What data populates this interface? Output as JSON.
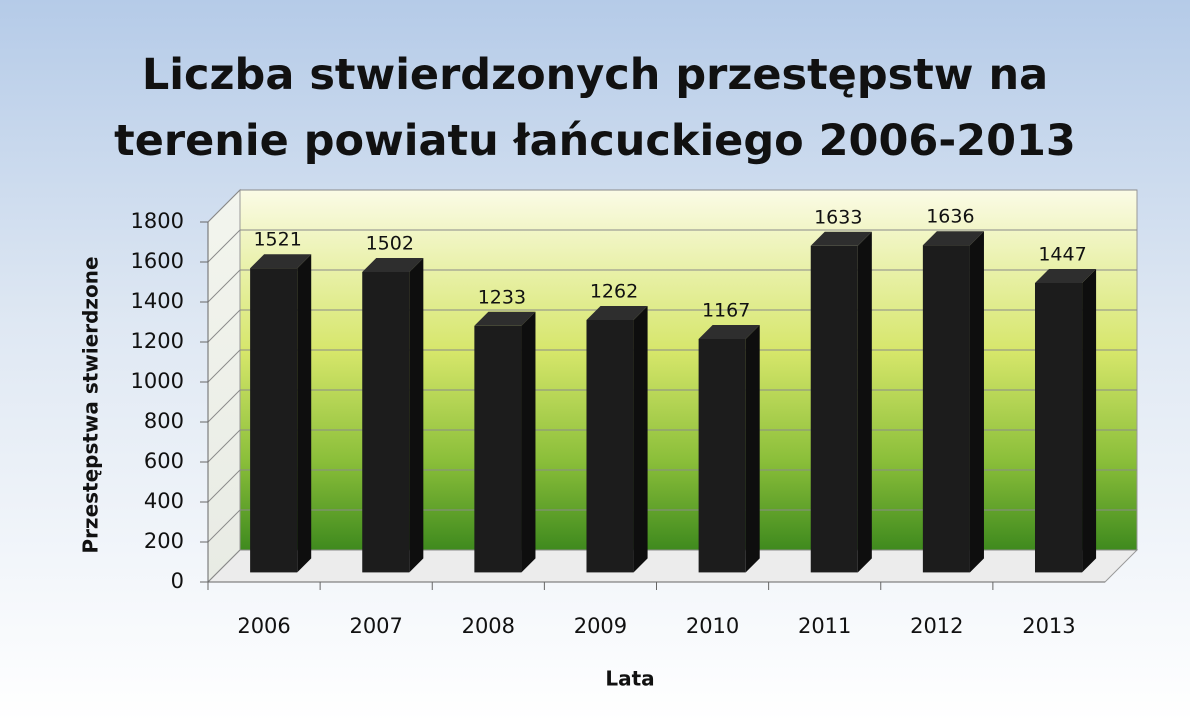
{
  "chart_data": {
    "type": "bar3d",
    "title": "Liczba stwierdzonych przestępstw na terenie powiatu łańcuckiego 2006-2013",
    "x_label": "Lata",
    "y_label": "Przestępstwa stwierdzone",
    "categories": [
      "2006",
      "2007",
      "2008",
      "2009",
      "2010",
      "2011",
      "2012",
      "2013"
    ],
    "values": [
      1521,
      1502,
      1233,
      1262,
      1167,
      1633,
      1636,
      1447
    ],
    "color": "#1c1c1c",
    "ylim": [
      0,
      1800
    ],
    "yticks": [
      0,
      200,
      400,
      600,
      800,
      1000,
      1200,
      1400,
      1600,
      1800
    ],
    "grid": true
  }
}
